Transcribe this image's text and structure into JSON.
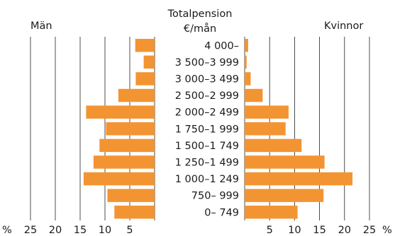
{
  "chart_data": {
    "type": "bar",
    "orientation": "horizontal",
    "subtype": "population-pyramid",
    "title": "Totalpension",
    "title_unit": "€/mån",
    "left_label": "Män",
    "right_label": "Kvinnor",
    "axis_unit": "%",
    "categories": [
      "4 000–",
      "3 500–3 999",
      "3 000–3 499",
      "2 500–2 999",
      "2 000–2 499",
      "1 750–1 999",
      "1 500–1 749",
      "1 250–1 499",
      "1 000–1 249",
      "750– 999",
      "0– 749"
    ],
    "series": [
      {
        "name": "Män",
        "values": [
          3.9,
          2.2,
          3.8,
          7.3,
          13.8,
          9.8,
          11.1,
          12.3,
          14.3,
          9.5,
          8.1
        ]
      },
      {
        "name": "Kvinnor",
        "values": [
          0.7,
          0.4,
          1.2,
          3.6,
          8.8,
          8.2,
          11.4,
          16.0,
          21.6,
          15.8,
          10.6
        ]
      }
    ],
    "left_ticks": [
      "25",
      "20",
      "15",
      "10",
      "5"
    ],
    "right_ticks": [
      "5",
      "10",
      "15",
      "20",
      "25"
    ],
    "xlim": [
      0,
      25
    ],
    "grid": true,
    "colors": {
      "bar": "#f39433",
      "text": "#1a1a1a",
      "grid": "#222222"
    }
  }
}
